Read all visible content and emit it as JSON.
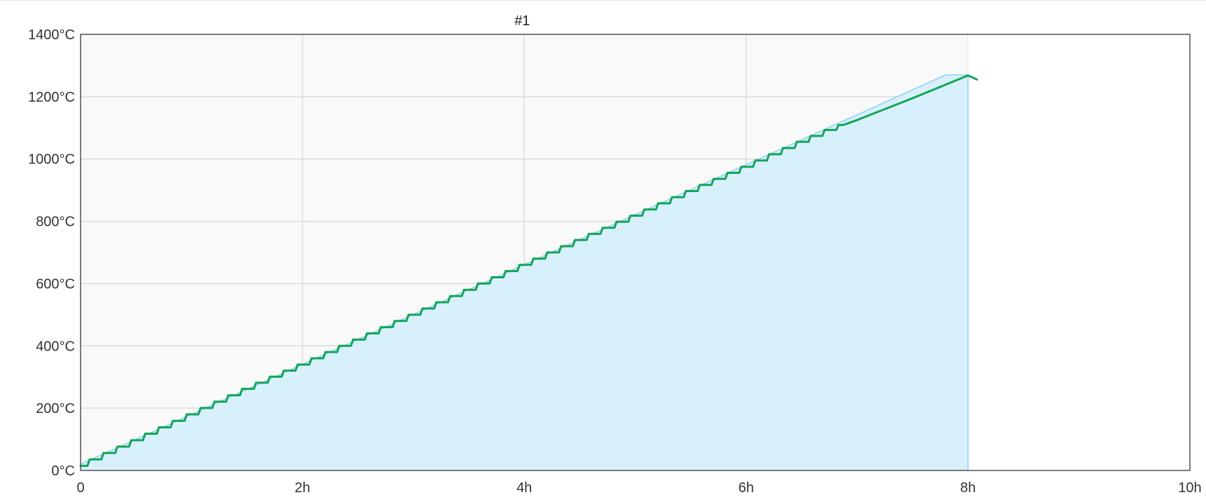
{
  "chart_data": {
    "type": "area",
    "title": "#1",
    "xlabel": "",
    "ylabel": "",
    "xlim": [
      0,
      10
    ],
    "ylim": [
      0,
      1400
    ],
    "x_ticks": [
      {
        "value": 0,
        "label": "0"
      },
      {
        "value": 2,
        "label": "2h"
      },
      {
        "value": 4,
        "label": "4h"
      },
      {
        "value": 6,
        "label": "6h"
      },
      {
        "value": 8,
        "label": "8h"
      },
      {
        "value": 10,
        "label": "10h"
      }
    ],
    "y_ticks": [
      {
        "value": 0,
        "label": "0°C"
      },
      {
        "value": 200,
        "label": "200°C"
      },
      {
        "value": 400,
        "label": "400°C"
      },
      {
        "value": 600,
        "label": "600°C"
      },
      {
        "value": 800,
        "label": "800°C"
      },
      {
        "value": 1000,
        "label": "1000°C"
      },
      {
        "value": 1200,
        "label": "1200°C"
      },
      {
        "value": 1400,
        "label": "1400°C"
      }
    ],
    "grid": true,
    "legend": "none",
    "shaded_region": {
      "x": [
        0,
        8
      ]
    },
    "series": [
      {
        "kind": "area",
        "color": "#8dd0f3",
        "fill": "#d8f0fc",
        "x": [
          0,
          7.8,
          8.0,
          8.0
        ],
        "y": [
          20,
          1270,
          1270,
          0
        ]
      },
      {
        "kind": "line",
        "color": "#12a557",
        "stepped": true,
        "x": [
          0,
          0.5,
          1,
          1.5,
          2,
          2.5,
          3,
          3.5,
          4,
          4.5,
          5,
          5.5,
          6,
          6.5,
          6.75,
          7,
          7.5,
          8.0,
          8.08
        ],
        "y": [
          15,
          97,
          180,
          262,
          340,
          420,
          500,
          580,
          660,
          740,
          818,
          897,
          975,
          1055,
          1093,
          1125,
          1195,
          1268,
          1255
        ]
      }
    ],
    "colors": {
      "plot_background": "#f9f9f9",
      "grid": "#dcdcdc",
      "axis": "#555555"
    }
  }
}
